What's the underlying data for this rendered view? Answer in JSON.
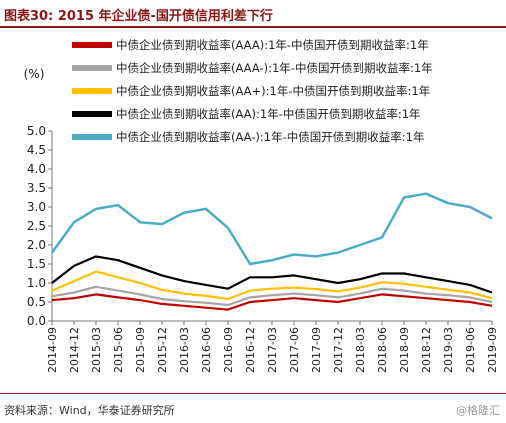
{
  "header": {
    "title": "图表30:  2015 年企业债-国开债信用利差下行"
  },
  "footer": {
    "source": "资料来源：Wind，华泰证券研究所",
    "watermark": "@格隆汇"
  },
  "chart_data": {
    "type": "line",
    "ylabel": "(%)",
    "ylim": [
      0,
      5
    ],
    "yticks": [
      "5.0",
      "4.5",
      "4.0",
      "3.5",
      "3.0",
      "2.5",
      "2.0",
      "1.5",
      "1.0",
      "0.5",
      "0.0"
    ],
    "x_tick_labels": [
      "2014-09",
      "2014-12",
      "2015-03",
      "2015-06",
      "2015-09",
      "2015-12",
      "2016-03",
      "2016-06",
      "2016-09",
      "2016-12",
      "2017-03",
      "2017-06",
      "2017-09",
      "2017-12",
      "2018-03",
      "2018-06",
      "2018-09",
      "2018-12",
      "2019-03",
      "2019-06",
      "2019-09"
    ],
    "legend_position": "top",
    "grid": false,
    "x": [
      "2014-09",
      "2014-12",
      "2015-03",
      "2015-06",
      "2015-09",
      "2015-12",
      "2016-03",
      "2016-06",
      "2016-09",
      "2016-12",
      "2017-03",
      "2017-06",
      "2017-09",
      "2017-12",
      "2018-03",
      "2018-06",
      "2018-09",
      "2018-12",
      "2019-03",
      "2019-06",
      "2019-09"
    ],
    "series": [
      {
        "name": "中债企业债到期收益率(AAA):1年-中债国开债到期收益率:1年",
        "color": "#c00000",
        "values": [
          0.55,
          0.6,
          0.7,
          0.62,
          0.55,
          0.45,
          0.4,
          0.35,
          0.3,
          0.5,
          0.55,
          0.6,
          0.55,
          0.5,
          0.6,
          0.7,
          0.65,
          0.6,
          0.55,
          0.5,
          0.4
        ]
      },
      {
        "name": "中债企业债到期收益率(AAA-):1年-中债国开债到期收益率:1年",
        "color": "#a6a6a6",
        "values": [
          0.65,
          0.75,
          0.9,
          0.8,
          0.7,
          0.58,
          0.52,
          0.48,
          0.42,
          0.62,
          0.68,
          0.72,
          0.68,
          0.62,
          0.72,
          0.85,
          0.8,
          0.72,
          0.68,
          0.62,
          0.5
        ]
      },
      {
        "name": "中债企业债到期收益率(AA+):1年-中债国开债到期收益率:1年",
        "color": "#ffc000",
        "values": [
          0.8,
          1.05,
          1.3,
          1.15,
          1.0,
          0.82,
          0.72,
          0.66,
          0.58,
          0.8,
          0.85,
          0.88,
          0.84,
          0.78,
          0.88,
          1.02,
          0.98,
          0.9,
          0.82,
          0.75,
          0.6
        ]
      },
      {
        "name": "中债企业债到期收益率(AA):1年-中债国开债到期收益率:1年",
        "color": "#000000",
        "values": [
          1.0,
          1.45,
          1.7,
          1.6,
          1.4,
          1.2,
          1.05,
          0.95,
          0.85,
          1.15,
          1.15,
          1.2,
          1.1,
          1.0,
          1.1,
          1.25,
          1.25,
          1.15,
          1.05,
          0.95,
          0.75
        ]
      },
      {
        "name": "中债企业债到期收益率(AA-):1年-中债国开债到期收益率:1年",
        "color": "#4bacc6",
        "values": [
          1.8,
          2.6,
          2.95,
          3.05,
          2.6,
          2.55,
          2.85,
          2.95,
          2.45,
          1.5,
          1.6,
          1.75,
          1.7,
          1.8,
          2.0,
          2.2,
          3.25,
          3.35,
          3.1,
          3.0,
          2.7
        ]
      }
    ]
  }
}
